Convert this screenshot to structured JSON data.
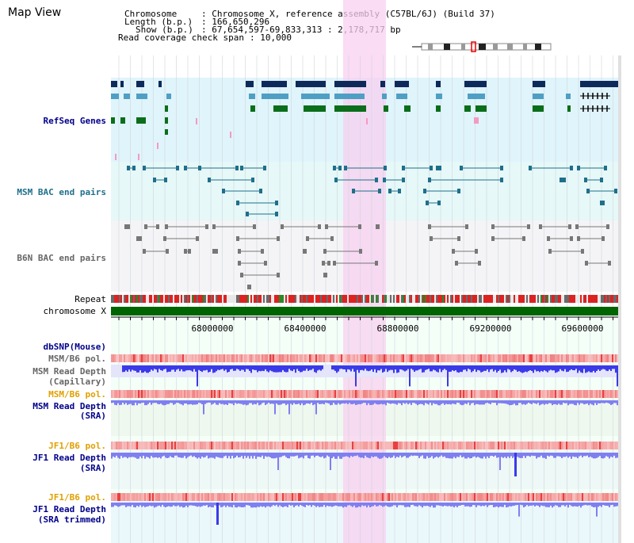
{
  "page": {
    "title": "Map View"
  },
  "info": {
    "chromosome_label": "Chromosome",
    "chromosome_value": ": Chromosome X, reference assembly (C57BL/6J) (Build 37)",
    "length_label": "Length (b.p.)",
    "length_value": ": 166,650,296",
    "show_label": "Show (b.p.)",
    "show_value": ": 67,654,597-69,833,313 : 2,178,717 bp",
    "coverage_label": "Read coverage check span",
    "coverage_value": ": 10,000"
  },
  "tracks": {
    "refseq": "RefSeq Genes",
    "msm_bac": "MSM BAC end pairs",
    "b6n_bac": "B6N BAC end pairs",
    "repeat": "Repeat",
    "chromosome": "chromosome X",
    "dbsnp": "dbSNP(Mouse)",
    "msm_b6_pol_1": "MSM/B6 pol.",
    "msm_read_depth_cap_1": "MSM Read Depth",
    "msm_read_depth_cap_2": "(Capillary)",
    "msm_b6_pol_2": "MSM/B6 pol.",
    "msm_read_depth_sra_1": "MSM Read Depth",
    "msm_read_depth_sra_2": "(SRA)",
    "jf1_b6_pol_1": "JF1/B6 pol.",
    "jf1_read_depth_sra_1": "JF1 Read Depth",
    "jf1_read_depth_sra_2": "(SRA)",
    "jf1_b6_pol_2": "JF1/B6 pol.",
    "jf1_read_depth_trim_1": "JF1 Read Depth",
    "jf1_read_depth_trim_2": "(SRA trimmed)"
  },
  "axis": {
    "ticks": [
      "68000000",
      "68400000",
      "68800000",
      "69200000",
      "69600000"
    ]
  },
  "colors": {
    "refseq_bg": "#e0f4fb",
    "msm_bg": "#e6f8f8",
    "b6n_bg": "#f4f4f6",
    "highlight": "#f8d0f0",
    "gene_navy": "#0d2a5a",
    "gene_blue": "#4f9fc4",
    "gene_green": "#0a6e1a",
    "bac_msm": "#1f6f8b",
    "bac_b6n": "#777777",
    "chrom_green": "#006400",
    "depth_blue": "#3a3ae8",
    "depth_light": "#7f7ff0",
    "pol_red": "#e84040"
  }
}
